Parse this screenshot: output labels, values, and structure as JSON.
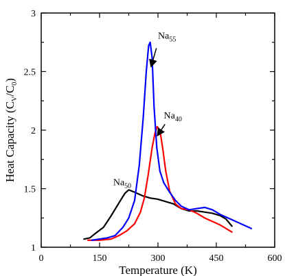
{
  "chart_data": {
    "type": "line",
    "title": "",
    "xlabel": "Temperature (K)",
    "ylabel": {
      "main": "Heat Capacity (C",
      "sub1": "V",
      "mid": "/C",
      "sub2": "0",
      "end": ")"
    },
    "xlim": [
      0,
      600
    ],
    "ylim": [
      1,
      3
    ],
    "xticks": [
      0,
      150,
      300,
      450,
      600
    ],
    "yticks": [
      1,
      1.5,
      2,
      2.5,
      3
    ],
    "grid": false,
    "legend": "none",
    "series": [
      {
        "color": "#000000",
        "points": [
          [
            110,
            1.07
          ],
          [
            125,
            1.08
          ],
          [
            140,
            1.12
          ],
          [
            160,
            1.17
          ],
          [
            180,
            1.27
          ],
          [
            200,
            1.38
          ],
          [
            215,
            1.46
          ],
          [
            225,
            1.49
          ],
          [
            240,
            1.47
          ],
          [
            260,
            1.44
          ],
          [
            280,
            1.42
          ],
          [
            300,
            1.41
          ],
          [
            320,
            1.39
          ],
          [
            340,
            1.37
          ],
          [
            360,
            1.33
          ],
          [
            380,
            1.31
          ],
          [
            400,
            1.31
          ],
          [
            420,
            1.3
          ],
          [
            440,
            1.29
          ],
          [
            460,
            1.27
          ],
          [
            475,
            1.24
          ],
          [
            490,
            1.18
          ]
        ]
      },
      {
        "color": "#ff0000",
        "points": [
          [
            120,
            1.06
          ],
          [
            150,
            1.06
          ],
          [
            180,
            1.07
          ],
          [
            200,
            1.1
          ],
          [
            220,
            1.14
          ],
          [
            240,
            1.2
          ],
          [
            255,
            1.3
          ],
          [
            265,
            1.42
          ],
          [
            275,
            1.62
          ],
          [
            285,
            1.85
          ],
          [
            292,
            1.97
          ],
          [
            298,
            2.03
          ],
          [
            305,
            2.0
          ],
          [
            312,
            1.85
          ],
          [
            320,
            1.65
          ],
          [
            330,
            1.48
          ],
          [
            345,
            1.37
          ],
          [
            360,
            1.33
          ],
          [
            380,
            1.32
          ],
          [
            400,
            1.29
          ],
          [
            420,
            1.25
          ],
          [
            440,
            1.22
          ],
          [
            460,
            1.19
          ],
          [
            475,
            1.16
          ],
          [
            490,
            1.13
          ]
        ]
      },
      {
        "color": "#0000ff",
        "points": [
          [
            130,
            1.06
          ],
          [
            150,
            1.07
          ],
          [
            170,
            1.08
          ],
          [
            190,
            1.1
          ],
          [
            210,
            1.17
          ],
          [
            225,
            1.25
          ],
          [
            240,
            1.4
          ],
          [
            252,
            1.7
          ],
          [
            262,
            2.1
          ],
          [
            270,
            2.5
          ],
          [
            276,
            2.72
          ],
          [
            280,
            2.75
          ],
          [
            285,
            2.62
          ],
          [
            290,
            2.2
          ],
          [
            297,
            1.85
          ],
          [
            305,
            1.65
          ],
          [
            315,
            1.55
          ],
          [
            330,
            1.47
          ],
          [
            345,
            1.4
          ],
          [
            360,
            1.35
          ],
          [
            380,
            1.32
          ],
          [
            400,
            1.33
          ],
          [
            420,
            1.34
          ],
          [
            440,
            1.32
          ],
          [
            460,
            1.28
          ],
          [
            480,
            1.25
          ],
          [
            500,
            1.22
          ],
          [
            520,
            1.19
          ],
          [
            540,
            1.16
          ]
        ]
      }
    ],
    "annotations": [
      {
        "base": "Na",
        "sub": "55",
        "at": [
          300,
          2.78
        ],
        "arrow_from": [
          296,
          2.7
        ],
        "arrow_to": [
          283,
          2.55
        ]
      },
      {
        "base": "Na",
        "sub": "40",
        "at": [
          315,
          2.1
        ],
        "arrow_from": [
          318,
          2.05
        ],
        "arrow_to": [
          300,
          1.96
        ]
      },
      {
        "base": "Na",
        "sub": "50",
        "at": [
          185,
          1.53
        ],
        "arrow_from": null,
        "arrow_to": null
      }
    ]
  }
}
